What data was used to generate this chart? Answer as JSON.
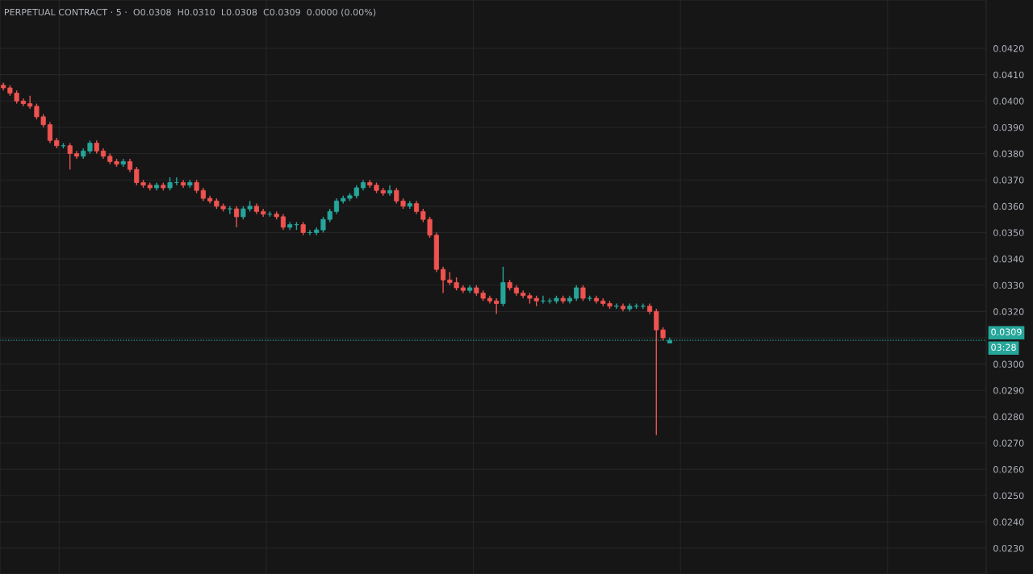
{
  "chart_data": {
    "type": "candlestick",
    "title": "PERPETUAL CONTRACT · 5 ·  O0.0308  H0.0310  L0.0308  C0.0309  0.0000 (0.00%)",
    "categories": [
      null,
      null,
      null,
      null,
      null,
      null,
      null,
      null,
      null,
      null,
      null,
      null,
      null,
      null,
      null,
      null,
      null,
      null,
      null,
      null,
      null,
      null,
      null,
      null,
      null,
      null,
      null,
      null,
      null,
      null,
      null,
      null,
      null,
      null,
      null,
      null,
      null,
      null,
      null,
      null,
      null,
      null,
      null,
      null,
      null,
      null,
      null,
      null,
      null,
      null,
      null,
      null,
      null,
      null,
      null,
      null,
      null,
      null,
      null,
      null,
      null,
      null,
      null,
      null,
      null,
      null,
      null,
      null,
      null,
      null,
      null,
      null,
      null,
      null,
      null,
      null,
      null,
      null,
      null,
      null,
      null,
      null,
      null,
      null,
      null,
      null,
      null,
      null,
      null,
      null,
      null,
      null,
      null,
      null,
      null,
      null,
      null,
      null,
      null,
      null,
      null,
      null,
      null,
      null,
      null,
      null,
      null,
      null,
      null,
      null,
      null,
      null,
      null,
      null,
      null,
      null,
      null,
      null,
      null,
      null,
      null,
      null,
      null,
      null,
      null,
      null,
      null,
      null,
      null,
      null,
      null,
      null,
      null,
      null,
      null,
      null,
      null,
      null,
      null,
      null,
      null,
      null,
      null,
      null,
      null,
      null,
      null,
      null
    ],
    "ohlc": [
      [
        0.0406,
        0.0407,
        0.0404,
        0.0405
      ],
      [
        0.0405,
        0.0406,
        0.0402,
        0.0403
      ],
      [
        0.0403,
        0.0404,
        0.0399,
        0.04
      ],
      [
        0.04,
        0.0401,
        0.0398,
        0.0399
      ],
      [
        0.0399,
        0.0402,
        0.0397,
        0.0398
      ],
      [
        0.0398,
        0.0399,
        0.0393,
        0.0394
      ],
      [
        0.0394,
        0.0395,
        0.039,
        0.0391
      ],
      [
        0.0391,
        0.0392,
        0.0384,
        0.0385
      ],
      [
        0.0385,
        0.0386,
        0.0382,
        0.0383
      ],
      [
        0.0383,
        0.0384,
        0.0382,
        0.0383
      ],
      [
        0.0383,
        0.0384,
        0.0374,
        0.038
      ],
      [
        0.038,
        0.0381,
        0.0378,
        0.0379
      ],
      [
        0.0379,
        0.0382,
        0.0378,
        0.0381
      ],
      [
        0.0381,
        0.0385,
        0.038,
        0.0384
      ],
      [
        0.0384,
        0.0385,
        0.038,
        0.0381
      ],
      [
        0.0381,
        0.0382,
        0.0378,
        0.0379
      ],
      [
        0.0379,
        0.038,
        0.0376,
        0.0377
      ],
      [
        0.0377,
        0.0378,
        0.0375,
        0.0376
      ],
      [
        0.0376,
        0.0378,
        0.0375,
        0.0377
      ],
      [
        0.0377,
        0.0378,
        0.0373,
        0.0374
      ],
      [
        0.0374,
        0.0375,
        0.0368,
        0.0369
      ],
      [
        0.0369,
        0.037,
        0.0367,
        0.0368
      ],
      [
        0.0368,
        0.0369,
        0.0366,
        0.0367
      ],
      [
        0.0367,
        0.0369,
        0.0366,
        0.0368
      ],
      [
        0.0368,
        0.0369,
        0.0366,
        0.0367
      ],
      [
        0.0367,
        0.0371,
        0.0366,
        0.0369
      ],
      [
        0.0369,
        0.0371,
        0.0368,
        0.0369
      ],
      [
        0.0369,
        0.037,
        0.0367,
        0.0368
      ],
      [
        0.0368,
        0.037,
        0.0367,
        0.0369
      ],
      [
        0.0369,
        0.037,
        0.0365,
        0.0366
      ],
      [
        0.0366,
        0.0367,
        0.0362,
        0.0363
      ],
      [
        0.0363,
        0.0364,
        0.0361,
        0.0362
      ],
      [
        0.0362,
        0.0363,
        0.0359,
        0.036
      ],
      [
        0.036,
        0.0361,
        0.0358,
        0.0359
      ],
      [
        0.0359,
        0.036,
        0.0357,
        0.0359
      ],
      [
        0.0359,
        0.036,
        0.0352,
        0.0356
      ],
      [
        0.0356,
        0.036,
        0.0355,
        0.0359
      ],
      [
        0.0359,
        0.0362,
        0.0358,
        0.036
      ],
      [
        0.036,
        0.0361,
        0.0357,
        0.0358
      ],
      [
        0.0358,
        0.0359,
        0.0356,
        0.0357
      ],
      [
        0.0357,
        0.0358,
        0.0356,
        0.0357
      ],
      [
        0.0357,
        0.0358,
        0.0355,
        0.0356
      ],
      [
        0.0356,
        0.0357,
        0.0351,
        0.0352
      ],
      [
        0.0352,
        0.0354,
        0.0351,
        0.0353
      ],
      [
        0.0353,
        0.0354,
        0.0351,
        0.0353
      ],
      [
        0.0353,
        0.0354,
        0.0349,
        0.035
      ],
      [
        0.035,
        0.0351,
        0.0349,
        0.035
      ],
      [
        0.035,
        0.0352,
        0.0349,
        0.0351
      ],
      [
        0.0351,
        0.0356,
        0.035,
        0.0355
      ],
      [
        0.0355,
        0.0359,
        0.0354,
        0.0358
      ],
      [
        0.0358,
        0.0363,
        0.0357,
        0.0362
      ],
      [
        0.0362,
        0.0364,
        0.0361,
        0.0363
      ],
      [
        0.0363,
        0.0365,
        0.0362,
        0.0364
      ],
      [
        0.0364,
        0.0368,
        0.0363,
        0.0367
      ],
      [
        0.0367,
        0.037,
        0.0366,
        0.0369
      ],
      [
        0.0369,
        0.037,
        0.0367,
        0.0368
      ],
      [
        0.0368,
        0.0369,
        0.0365,
        0.0366
      ],
      [
        0.0366,
        0.0367,
        0.0364,
        0.0365
      ],
      [
        0.0365,
        0.0368,
        0.0364,
        0.0366
      ],
      [
        0.0366,
        0.0367,
        0.0361,
        0.0362
      ],
      [
        0.0362,
        0.0363,
        0.0359,
        0.036
      ],
      [
        0.036,
        0.0362,
        0.0359,
        0.0361
      ],
      [
        0.0361,
        0.0362,
        0.0357,
        0.0358
      ],
      [
        0.0358,
        0.0359,
        0.0354,
        0.0355
      ],
      [
        0.0355,
        0.0356,
        0.0348,
        0.0349
      ],
      [
        0.0349,
        0.035,
        0.0335,
        0.0336
      ],
      [
        0.0336,
        0.0337,
        0.0327,
        0.0332
      ],
      [
        0.0332,
        0.0335,
        0.033,
        0.0331
      ],
      [
        0.0331,
        0.0333,
        0.0328,
        0.0329
      ],
      [
        0.0329,
        0.033,
        0.0327,
        0.0328
      ],
      [
        0.0328,
        0.033,
        0.0327,
        0.0329
      ],
      [
        0.0329,
        0.033,
        0.0326,
        0.0327
      ],
      [
        0.0327,
        0.0328,
        0.0324,
        0.0325
      ],
      [
        0.0325,
        0.0326,
        0.0323,
        0.0324
      ],
      [
        0.0324,
        0.0325,
        0.0319,
        0.0323
      ],
      [
        0.0323,
        0.0337,
        0.0322,
        0.0331
      ],
      [
        0.0331,
        0.0332,
        0.0328,
        0.0329
      ],
      [
        0.0329,
        0.033,
        0.0326,
        0.0327
      ],
      [
        0.0327,
        0.0328,
        0.0325,
        0.0326
      ],
      [
        0.0326,
        0.0327,
        0.0323,
        0.0325
      ],
      [
        0.0325,
        0.0326,
        0.0322,
        0.0324
      ],
      [
        0.0324,
        0.0326,
        0.0323,
        0.0324
      ],
      [
        0.0324,
        0.0325,
        0.0323,
        0.0324
      ],
      [
        0.0324,
        0.0326,
        0.0323,
        0.0325
      ],
      [
        0.0325,
        0.0326,
        0.0323,
        0.0324
      ],
      [
        0.0324,
        0.0326,
        0.0323,
        0.0325
      ],
      [
        0.0325,
        0.033,
        0.0324,
        0.0329
      ],
      [
        0.0329,
        0.033,
        0.0324,
        0.0325
      ],
      [
        0.0325,
        0.0326,
        0.0324,
        0.0325
      ],
      [
        0.0325,
        0.0326,
        0.0323,
        0.0324
      ],
      [
        0.0324,
        0.0325,
        0.0322,
        0.0323
      ],
      [
        0.0323,
        0.0324,
        0.0321,
        0.0322
      ],
      [
        0.0322,
        0.0323,
        0.0321,
        0.0322
      ],
      [
        0.0322,
        0.0323,
        0.032,
        0.0321
      ],
      [
        0.0321,
        0.0323,
        0.032,
        0.0322
      ],
      [
        0.0322,
        0.0323,
        0.0321,
        0.0322
      ],
      [
        0.0322,
        0.0323,
        0.0321,
        0.0322
      ],
      [
        0.0322,
        0.0323,
        0.0319,
        0.032
      ],
      [
        0.032,
        0.0321,
        0.0273,
        0.0313
      ],
      [
        0.0313,
        0.0314,
        0.0309,
        0.031
      ],
      [
        0.0308,
        0.031,
        0.0308,
        0.0309
      ],
      null,
      null,
      null,
      null,
      null,
      null,
      null,
      null,
      null,
      null,
      null,
      null,
      null,
      null,
      null,
      null,
      null,
      null,
      null,
      null,
      null,
      null,
      null,
      null,
      null,
      null,
      null,
      null,
      null,
      null,
      null,
      null,
      null,
      null,
      null,
      null,
      null,
      null,
      null,
      null,
      null,
      null,
      null,
      null,
      null,
      null,
      null
    ],
    "ylim": [
      0.02202,
      0.04384
    ],
    "yticks": [
      {
        "value": 0.023,
        "label": "0.0230"
      },
      {
        "value": 0.024,
        "label": "0.0240"
      },
      {
        "value": 0.025,
        "label": "0.0250"
      },
      {
        "value": 0.026,
        "label": "0.0260"
      },
      {
        "value": 0.027,
        "label": "0.0270"
      },
      {
        "value": 0.028,
        "label": "0.0280"
      },
      {
        "value": 0.029,
        "label": "0.0290"
      },
      {
        "value": 0.03,
        "label": "0.0300"
      },
      {
        "value": 0.031,
        "label": null
      },
      {
        "value": 0.032,
        "label": "0.0320"
      },
      {
        "value": 0.033,
        "label": "0.0330"
      },
      {
        "value": 0.034,
        "label": "0.0340"
      },
      {
        "value": 0.035,
        "label": "0.0350"
      },
      {
        "value": 0.036,
        "label": "0.0360"
      },
      {
        "value": 0.037,
        "label": "0.0370"
      },
      {
        "value": 0.038,
        "label": "0.0380"
      },
      {
        "value": 0.039,
        "label": "0.0390"
      },
      {
        "value": 0.04,
        "label": "0.0400"
      },
      {
        "value": 0.041,
        "label": "0.0410"
      },
      {
        "value": 0.042,
        "label": "0.0420"
      }
    ],
    "ref_lines": [
      {
        "axis": "y",
        "value": 0.0309,
        "label": "0.0309",
        "color": "#26a69a",
        "line_style": "dotted"
      }
    ],
    "annotations": [
      "03:28"
    ],
    "grid": true
  }
}
